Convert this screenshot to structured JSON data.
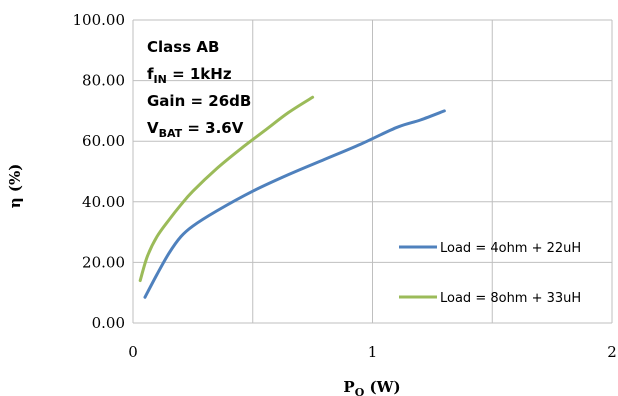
{
  "chart_data": {
    "type": "line",
    "title": "",
    "xlabel_main": "P",
    "xlabel_sub": "O",
    "xlabel_unit": " (W)",
    "ylabel": "η (%)",
    "xlim": [
      0,
      2
    ],
    "ylim": [
      0,
      100
    ],
    "x_ticks": [
      "0",
      "1",
      "2"
    ],
    "y_ticks": [
      "0.00",
      "20.00",
      "40.00",
      "60.00",
      "80.00",
      "100.00"
    ],
    "grid": true,
    "legend_position": "right",
    "annotation": {
      "line1": "Class AB",
      "line2_main": "f",
      "line2_sub": "IN",
      "line2_rest": " = 1kHz",
      "line3": "Gain = 26dB",
      "line4_main": "V",
      "line4_sub": "BAT",
      "line4_rest": " = 3.6V"
    },
    "series": [
      {
        "name": "Load = 4ohm + 22uH",
        "color": "#4F81BD",
        "x": [
          0.05,
          0.1,
          0.15,
          0.2,
          0.25,
          0.35,
          0.5,
          0.65,
          0.8,
          0.95,
          1.1,
          1.2,
          1.3
        ],
        "y": [
          8.5,
          16,
          23,
          28.5,
          32,
          37,
          43.5,
          49,
          54,
          59,
          64.5,
          67,
          70
        ]
      },
      {
        "name": "Load = 8ohm + 33uH",
        "color": "#9BBB59",
        "x": [
          0.03,
          0.06,
          0.1,
          0.15,
          0.2,
          0.25,
          0.35,
          0.45,
          0.55,
          0.65,
          0.75
        ],
        "y": [
          14,
          22,
          28.5,
          34,
          39,
          43.5,
          51,
          57.5,
          63.5,
          69.5,
          74.5
        ]
      }
    ]
  }
}
